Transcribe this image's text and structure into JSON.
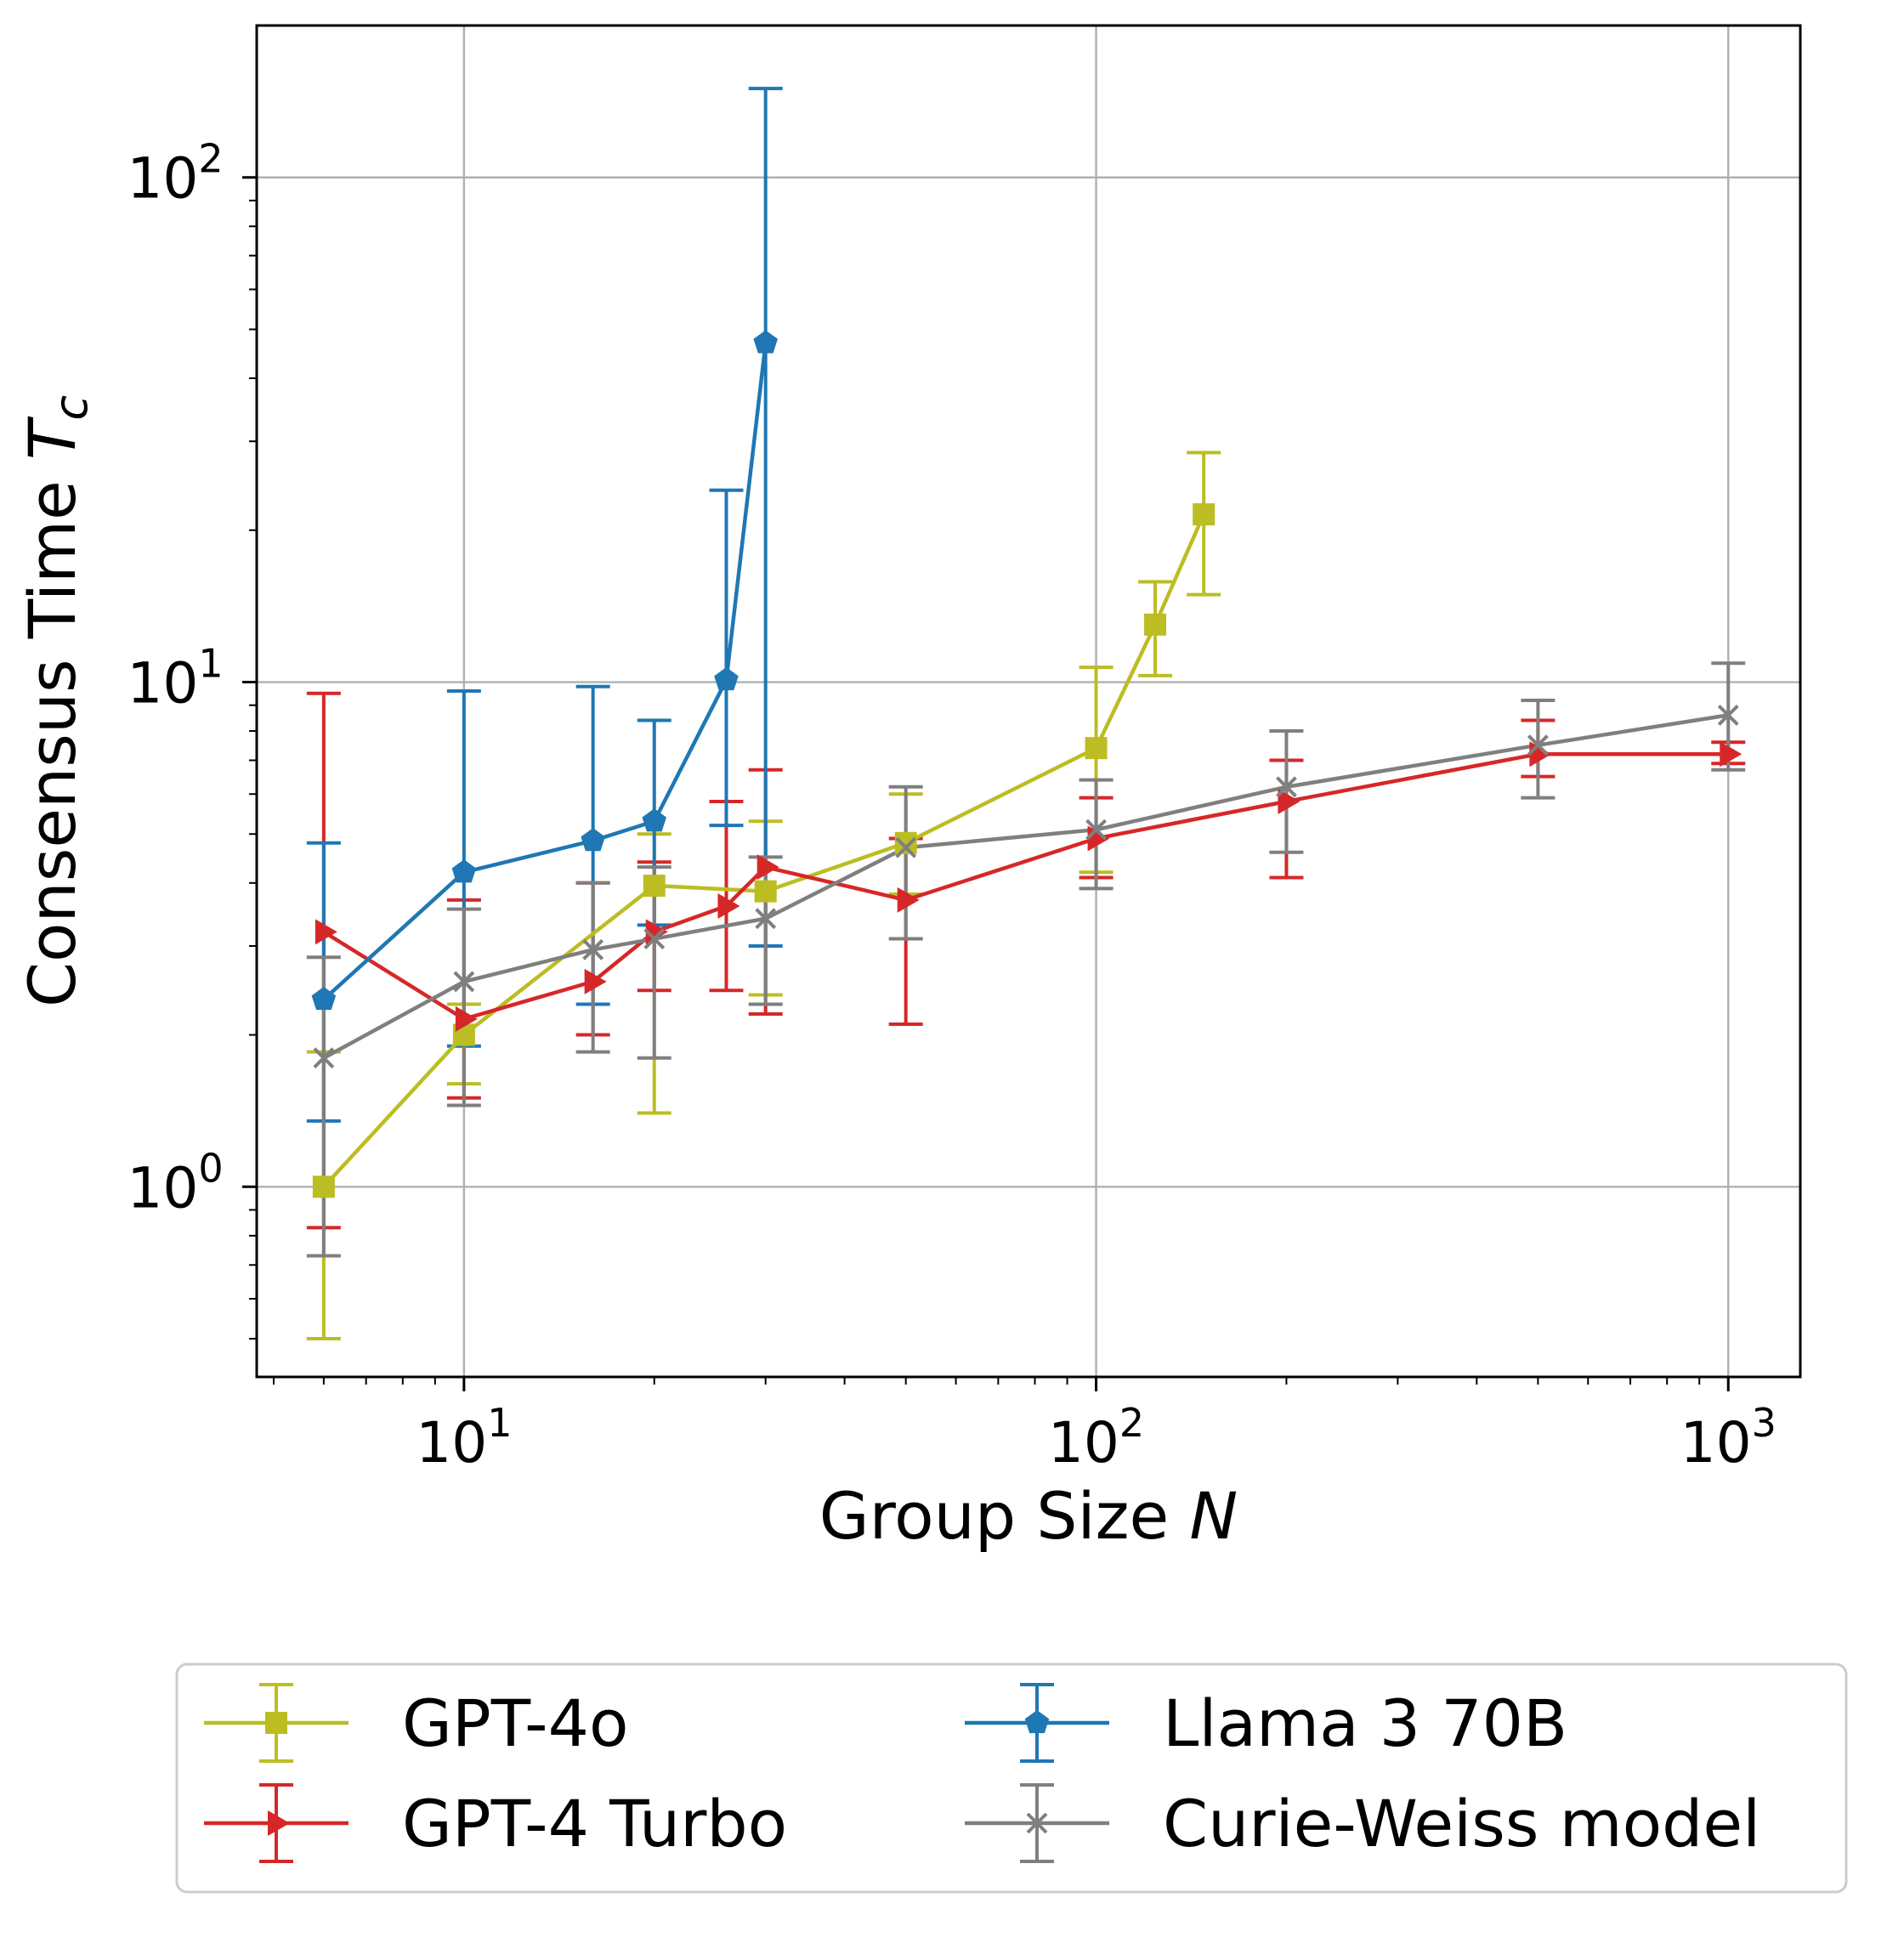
{
  "chart_data": {
    "type": "line",
    "xlabel": "Group Size",
    "xlabel_var": "N",
    "ylabel": "Consensus Time",
    "ylabel_var": "T",
    "ylabel_sub": "c",
    "xscale": "log",
    "yscale": "log",
    "xlim": [
      4.7,
      1300
    ],
    "ylim": [
      0.42,
      200
    ],
    "grid": true,
    "legend_position": "bottom, below plot, 2 columns",
    "x_ticks": [
      {
        "base": "10",
        "exp": "1",
        "value": 10
      },
      {
        "base": "10",
        "exp": "2",
        "value": 100
      },
      {
        "base": "10",
        "exp": "3",
        "value": 1000
      }
    ],
    "y_ticks": [
      {
        "base": "10",
        "exp": "0",
        "value": 1
      },
      {
        "base": "10",
        "exp": "1",
        "value": 10
      },
      {
        "base": "10",
        "exp": "2",
        "value": 100
      }
    ],
    "series": [
      {
        "name": "GPT-4o",
        "color": "#bcbd22",
        "marker": "square",
        "points": [
          {
            "x": 6,
            "y": 1.0,
            "lo": 0.5,
            "hi": 1.85
          },
          {
            "x": 10,
            "y": 2.0,
            "lo": 1.6,
            "hi": 2.3
          },
          {
            "x": 20,
            "y": 3.95,
            "lo": 1.4,
            "hi": 5.0
          },
          {
            "x": 30,
            "y": 3.85,
            "lo": 2.4,
            "hi": 5.3
          },
          {
            "x": 50,
            "y": 4.8,
            "lo": 3.8,
            "hi": 6.0
          },
          {
            "x": 100,
            "y": 7.4,
            "lo": 4.2,
            "hi": 10.7
          },
          {
            "x": 124,
            "y": 13.0,
            "lo": 10.3,
            "hi": 15.8
          },
          {
            "x": 148,
            "y": 21.5,
            "lo": 14.9,
            "hi": 28.5
          }
        ]
      },
      {
        "name": "GPT-4 Turbo",
        "color": "#d62728",
        "marker": "triangle-right",
        "points": [
          {
            "x": 6,
            "y": 3.2,
            "lo": 0.83,
            "hi": 9.5
          },
          {
            "x": 10,
            "y": 2.15,
            "lo": 1.5,
            "hi": 3.7
          },
          {
            "x": 16,
            "y": 2.55,
            "lo": 2.0,
            "hi": 4.0
          },
          {
            "x": 20,
            "y": 3.2,
            "lo": 2.45,
            "hi": 4.4
          },
          {
            "x": 26,
            "y": 3.6,
            "lo": 2.45,
            "hi": 5.8
          },
          {
            "x": 30,
            "y": 4.3,
            "lo": 2.2,
            "hi": 6.7
          },
          {
            "x": 50,
            "y": 3.7,
            "lo": 2.1,
            "hi": 4.9
          },
          {
            "x": 100,
            "y": 4.9,
            "lo": 4.1,
            "hi": 5.9
          },
          {
            "x": 200,
            "y": 5.8,
            "lo": 4.1,
            "hi": 7.0
          },
          {
            "x": 500,
            "y": 7.2,
            "lo": 6.5,
            "hi": 8.4
          },
          {
            "x": 1000,
            "y": 7.2,
            "lo": 6.9,
            "hi": 7.6
          }
        ]
      },
      {
        "name": "Llama 3 70B",
        "color": "#1f77b4",
        "marker": "pentagon",
        "points": [
          {
            "x": 6,
            "y": 2.35,
            "lo": 1.35,
            "hi": 4.8
          },
          {
            "x": 10,
            "y": 4.2,
            "lo": 1.9,
            "hi": 9.6
          },
          {
            "x": 16,
            "y": 4.85,
            "lo": 2.3,
            "hi": 9.8
          },
          {
            "x": 20,
            "y": 5.3,
            "lo": 3.3,
            "hi": 8.4
          },
          {
            "x": 26,
            "y": 10.1,
            "lo": 5.2,
            "hi": 24.0
          },
          {
            "x": 30,
            "y": 47.0,
            "lo": 3.0,
            "hi": 150.0
          }
        ]
      },
      {
        "name": "Curie-Weiss model",
        "color": "#7f7f7f",
        "marker": "x",
        "points": [
          {
            "x": 6,
            "y": 1.8,
            "lo": 0.73,
            "hi": 2.85
          },
          {
            "x": 10,
            "y": 2.55,
            "lo": 1.45,
            "hi": 3.55
          },
          {
            "x": 16,
            "y": 2.95,
            "lo": 1.85,
            "hi": 4.0
          },
          {
            "x": 20,
            "y": 3.1,
            "lo": 1.8,
            "hi": 4.3
          },
          {
            "x": 30,
            "y": 3.4,
            "lo": 2.3,
            "hi": 4.5
          },
          {
            "x": 50,
            "y": 4.7,
            "lo": 3.1,
            "hi": 6.2
          },
          {
            "x": 100,
            "y": 5.1,
            "lo": 3.9,
            "hi": 6.4
          },
          {
            "x": 200,
            "y": 6.2,
            "lo": 4.6,
            "hi": 8.0
          },
          {
            "x": 500,
            "y": 7.5,
            "lo": 5.9,
            "hi": 9.2
          },
          {
            "x": 1000,
            "y": 8.6,
            "lo": 6.7,
            "hi": 10.9
          }
        ]
      }
    ],
    "legend_order": [
      "GPT-4o",
      "Llama 3 70B",
      "GPT-4 Turbo",
      "Curie-Weiss model"
    ]
  }
}
